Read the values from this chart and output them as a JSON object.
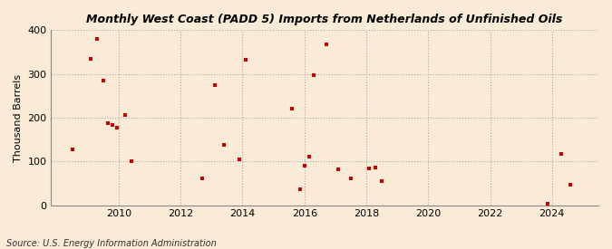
{
  "title": "Monthly West Coast (PADD 5) Imports from Netherlands of Unfinished Oils",
  "ylabel": "Thousand Barrels",
  "source": "Source: U.S. Energy Information Administration",
  "background_color": "#faebd7",
  "marker_color": "#cc0000",
  "xlim": [
    2007.8,
    2025.5
  ],
  "ylim": [
    0,
    400
  ],
  "yticks": [
    0,
    100,
    200,
    300,
    400
  ],
  "xticks": [
    2010,
    2012,
    2014,
    2016,
    2018,
    2020,
    2022,
    2024
  ],
  "data_points": [
    [
      2008.5,
      127
    ],
    [
      2009.1,
      335
    ],
    [
      2009.3,
      380
    ],
    [
      2009.5,
      285
    ],
    [
      2009.65,
      188
    ],
    [
      2009.8,
      183
    ],
    [
      2009.95,
      177
    ],
    [
      2010.2,
      207
    ],
    [
      2010.4,
      100
    ],
    [
      2012.7,
      62
    ],
    [
      2013.1,
      275
    ],
    [
      2013.4,
      137
    ],
    [
      2013.9,
      105
    ],
    [
      2014.1,
      333
    ],
    [
      2015.6,
      221
    ],
    [
      2015.85,
      36
    ],
    [
      2016.0,
      91
    ],
    [
      2016.15,
      110
    ],
    [
      2016.3,
      298
    ],
    [
      2016.7,
      368
    ],
    [
      2017.1,
      82
    ],
    [
      2017.5,
      62
    ],
    [
      2018.1,
      85
    ],
    [
      2018.3,
      86
    ],
    [
      2018.5,
      56
    ],
    [
      2023.85,
      3
    ],
    [
      2024.3,
      117
    ],
    [
      2024.6,
      47
    ]
  ]
}
